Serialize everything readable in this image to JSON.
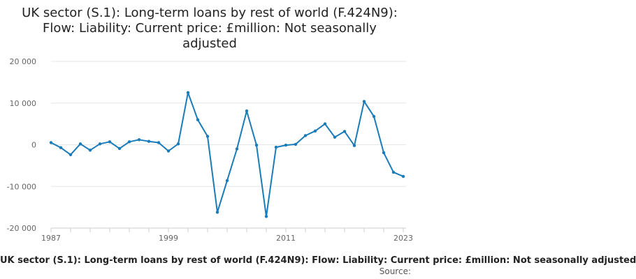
{
  "title": "UK sector (S.1): Long-term loans by rest of world (F.424N9): Flow: Liability: Current price: £million: Not seasonally adjusted",
  "legend_label": "UK sector (S.1): Long-term loans by rest of world (F.424N9): Flow: Liability: Current price: £million: Not seasonally adjusted",
  "source_label": "Source:",
  "colors": {
    "line": "#1a7bb9",
    "grid": "#e6e6e6",
    "axis": "#cccccc",
    "tick_text": "#666666"
  },
  "chart_data": {
    "type": "line",
    "title": "UK sector (S.1): Long-term loans by rest of world (F.424N9): Flow: Liability: Current price: £million: Not seasonally adjusted",
    "xlabel": "",
    "ylabel": "",
    "xlim": [
      1987,
      2023
    ],
    "ylim": [
      -20000,
      20000
    ],
    "x_ticks": [
      1987,
      1999,
      2011,
      2023
    ],
    "y_ticks": [
      -20000,
      -10000,
      0,
      10000,
      20000
    ],
    "y_tick_labels": [
      "-20 000",
      "-10 000",
      "0",
      "10 000",
      "20 000"
    ],
    "grid": "horizontal",
    "series": [
      {
        "name": "UK sector (S.1): Long-term loans by rest of world (F.424N9): Flow: Liability: Current price: £million: Not seasonally adjusted",
        "x": [
          1987,
          1988,
          1989,
          1990,
          1991,
          1992,
          1993,
          1994,
          1995,
          1996,
          1997,
          1998,
          1999,
          2000,
          2001,
          2002,
          2003,
          2004,
          2005,
          2006,
          2007,
          2008,
          2009,
          2010,
          2011,
          2012,
          2013,
          2014,
          2015,
          2016,
          2017,
          2018,
          2019,
          2020,
          2021,
          2022,
          2023
        ],
        "values": [
          500,
          -700,
          -2400,
          200,
          -1300,
          200,
          700,
          -900,
          700,
          1200,
          800,
          500,
          -1500,
          200,
          12500,
          6000,
          2000,
          -16200,
          -8600,
          -1000,
          8100,
          -100,
          -17200,
          -600,
          -100,
          100,
          2200,
          3300,
          5000,
          1800,
          3200,
          -200,
          10400,
          6800,
          -1900,
          -6600,
          -7600
        ]
      }
    ]
  }
}
